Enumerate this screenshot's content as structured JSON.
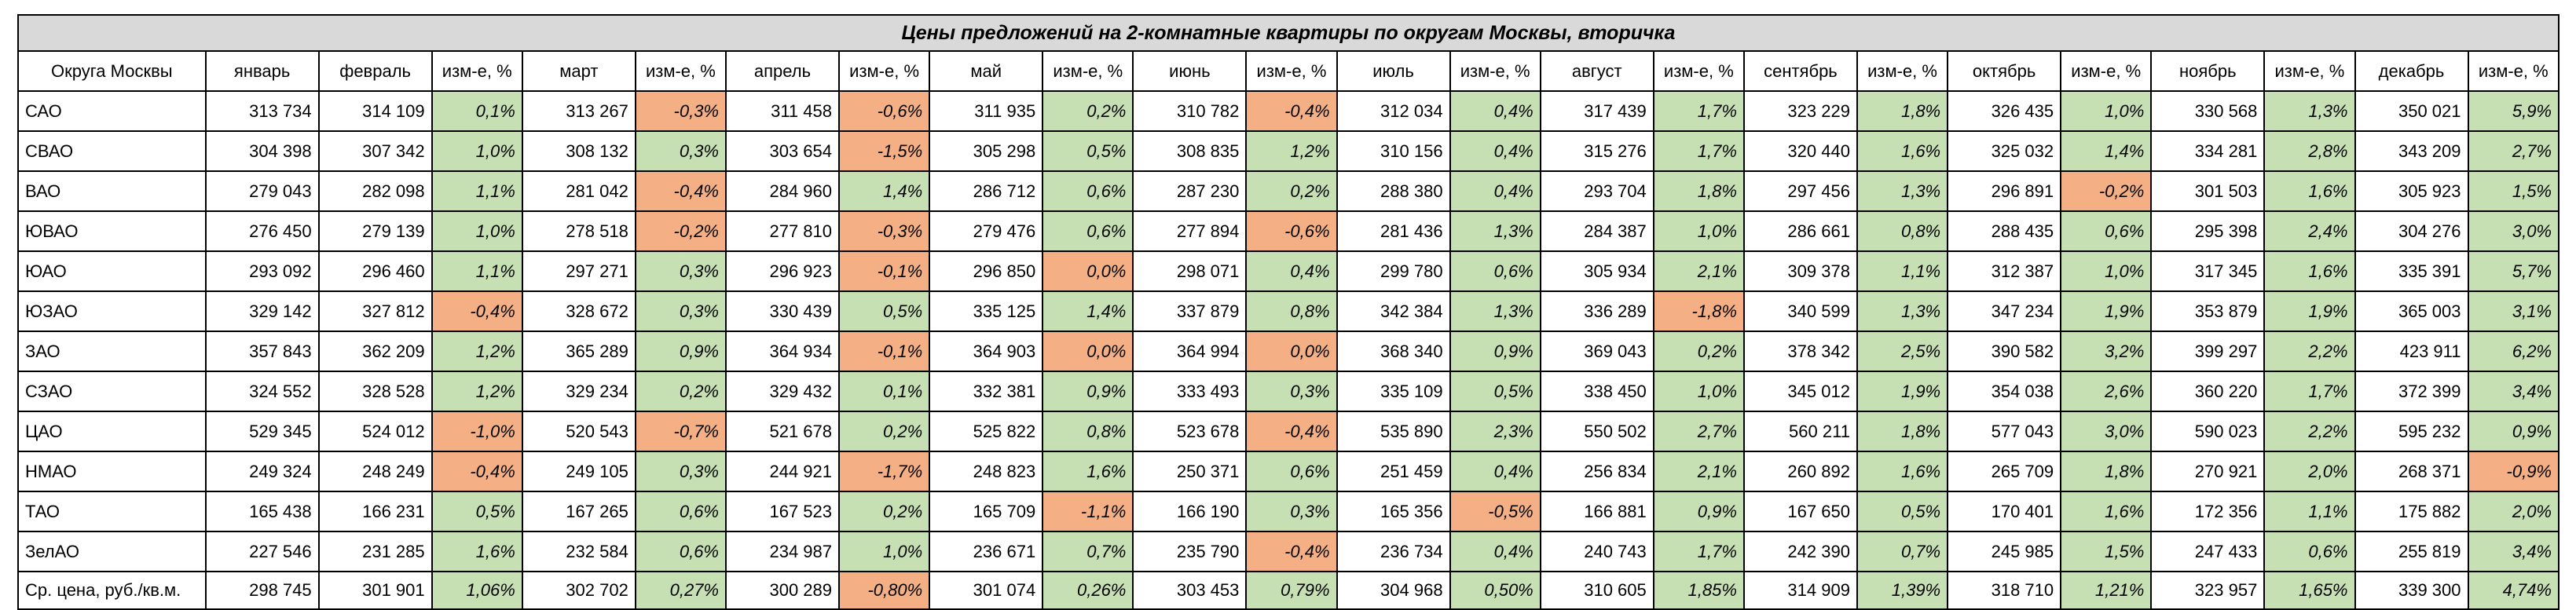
{
  "title": "Цены предложений на 2-комнатные квартиры по округам Москвы, вторичка",
  "colors": {
    "positive": "#c6e0b4",
    "negative": "#f4b084",
    "header": "#d9d9d9"
  },
  "headers": [
    "Округа Москвы",
    "январь",
    "февраль",
    "изм-е, %",
    "март",
    "изм-е, %",
    "апрель",
    "изм-е, %",
    "май",
    "изм-е, %",
    "июнь",
    "изм-е, %",
    "июль",
    "изм-е, %",
    "август",
    "изм-е, %",
    "сентябрь",
    "изм-е, %",
    "октябрь",
    "изм-е, %",
    "ноябрь",
    "изм-е, %",
    "декабрь",
    "изм-е, %"
  ],
  "rows": [
    [
      "САО",
      "313 734",
      "314 109",
      "0,1%",
      "313 267",
      "-0,3%",
      "311 458",
      "-0,6%",
      "311 935",
      "0,2%",
      "310 782",
      "-0,4%",
      "312 034",
      "0,4%",
      "317 439",
      "1,7%",
      "323 229",
      "1,8%",
      "326 435",
      "1,0%",
      "330 568",
      "1,3%",
      "350 021",
      "5,9%"
    ],
    [
      "СВАО",
      "304 398",
      "307 342",
      "1,0%",
      "308 132",
      "0,3%",
      "303 654",
      "-1,5%",
      "305 298",
      "0,5%",
      "308 835",
      "1,2%",
      "310 156",
      "0,4%",
      "315 276",
      "1,7%",
      "320 440",
      "1,6%",
      "325 032",
      "1,4%",
      "334 281",
      "2,8%",
      "343 209",
      "2,7%"
    ],
    [
      "ВАО",
      "279 043",
      "282 098",
      "1,1%",
      "281 042",
      "-0,4%",
      "284 960",
      "1,4%",
      "286 712",
      "0,6%",
      "287 230",
      "0,2%",
      "288 380",
      "0,4%",
      "293 704",
      "1,8%",
      "297 456",
      "1,3%",
      "296 891",
      "-0,2%",
      "301 503",
      "1,6%",
      "305 923",
      "1,5%"
    ],
    [
      "ЮВАО",
      "276 450",
      "279 139",
      "1,0%",
      "278 518",
      "-0,2%",
      "277 810",
      "-0,3%",
      "279 476",
      "0,6%",
      "277 894",
      "-0,6%",
      "281 436",
      "1,3%",
      "284 387",
      "1,0%",
      "286 661",
      "0,8%",
      "288 435",
      "0,6%",
      "295 398",
      "2,4%",
      "304 276",
      "3,0%"
    ],
    [
      "ЮАО",
      "293 092",
      "296 460",
      "1,1%",
      "297 271",
      "0,3%",
      "296 923",
      "-0,1%",
      "296 850",
      "0,0%",
      "298 071",
      "0,4%",
      "299 780",
      "0,6%",
      "305 934",
      "2,1%",
      "309 378",
      "1,1%",
      "312 387",
      "1,0%",
      "317 345",
      "1,6%",
      "335 391",
      "5,7%"
    ],
    [
      "ЮЗАО",
      "329 142",
      "327 812",
      "-0,4%",
      "328 672",
      "0,3%",
      "330 439",
      "0,5%",
      "335 125",
      "1,4%",
      "337 879",
      "0,8%",
      "342 384",
      "1,3%",
      "336 289",
      "-1,8%",
      "340 599",
      "1,3%",
      "347 234",
      "1,9%",
      "353 879",
      "1,9%",
      "365 003",
      "3,1%"
    ],
    [
      "ЗАО",
      "357 843",
      "362 209",
      "1,2%",
      "365 289",
      "0,9%",
      "364 934",
      "-0,1%",
      "364 903",
      "0,0%",
      "364 994",
      "0,0%",
      "368 340",
      "0,9%",
      "369 043",
      "0,2%",
      "378 342",
      "2,5%",
      "390 582",
      "3,2%",
      "399 297",
      "2,2%",
      "423 911",
      "6,2%"
    ],
    [
      "СЗАО",
      "324 552",
      "328 528",
      "1,2%",
      "329 234",
      "0,2%",
      "329 432",
      "0,1%",
      "332 381",
      "0,9%",
      "333 493",
      "0,3%",
      "335 109",
      "0,5%",
      "338 450",
      "1,0%",
      "345 012",
      "1,9%",
      "354 038",
      "2,6%",
      "360 220",
      "1,7%",
      "372 399",
      "3,4%"
    ],
    [
      "ЦАО",
      "529 345",
      "524 012",
      "-1,0%",
      "520 543",
      "-0,7%",
      "521 678",
      "0,2%",
      "525 822",
      "0,8%",
      "523 678",
      "-0,4%",
      "535 890",
      "2,3%",
      "550 502",
      "2,7%",
      "560 211",
      "1,8%",
      "577 043",
      "3,0%",
      "590 023",
      "2,2%",
      "595 232",
      "0,9%"
    ],
    [
      "НМАО",
      "249 324",
      "248 249",
      "-0,4%",
      "249 105",
      "0,3%",
      "244 921",
      "-1,7%",
      "248 823",
      "1,6%",
      "250 371",
      "0,6%",
      "251 459",
      "0,4%",
      "256 834",
      "2,1%",
      "260 892",
      "1,6%",
      "265 709",
      "1,8%",
      "270 921",
      "2,0%",
      "268 371",
      "-0,9%"
    ],
    [
      "ТАО",
      "165 438",
      "166 231",
      "0,5%",
      "167 265",
      "0,6%",
      "167 523",
      "0,2%",
      "165 709",
      "-1,1%",
      "166 190",
      "0,3%",
      "165 356",
      "-0,5%",
      "166 881",
      "0,9%",
      "167 650",
      "0,5%",
      "170 401",
      "1,6%",
      "172 356",
      "1,1%",
      "175 882",
      "2,0%"
    ],
    [
      "ЗелАО",
      "227 546",
      "231 285",
      "1,6%",
      "232 584",
      "0,6%",
      "234 987",
      "1,0%",
      "236 671",
      "0,7%",
      "235 790",
      "-0,4%",
      "236 734",
      "0,4%",
      "240 743",
      "1,7%",
      "242 390",
      "0,7%",
      "245 985",
      "1,5%",
      "247 433",
      "0,6%",
      "255 819",
      "3,4%"
    ]
  ],
  "average_row": [
    "Ср. цена, руб./кв.м.",
    "298 745",
    "301 901",
    "1,06%",
    "302 702",
    "0,27%",
    "300 289",
    "-0,80%",
    "301 074",
    "0,26%",
    "303 453",
    "0,79%",
    "304 968",
    "0,50%",
    "310 605",
    "1,85%",
    "314 909",
    "1,39%",
    "318 710",
    "1,21%",
    "323 957",
    "1,65%",
    "339 300",
    "4,74%"
  ]
}
